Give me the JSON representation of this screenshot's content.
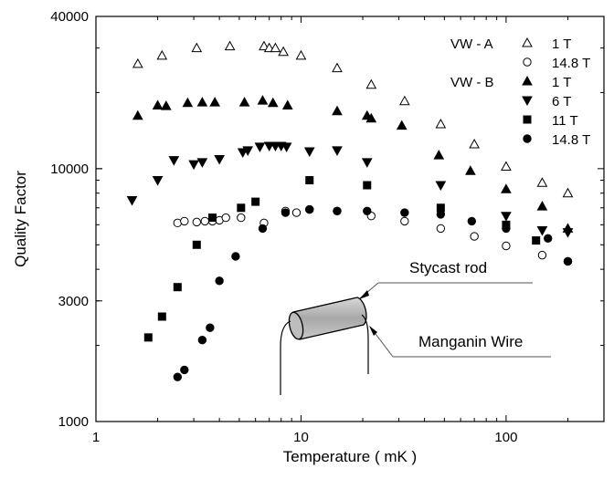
{
  "chart_data": {
    "type": "scatter",
    "xlabel": "Temperature ( mK )",
    "ylabel": "Quality Factor",
    "xscale": "log",
    "yscale": "log",
    "xlim": [
      1,
      300
    ],
    "ylim": [
      1000,
      40000
    ],
    "xtick_labels": [
      {
        "value": 1,
        "label": "1"
      },
      {
        "value": 10,
        "label": "10"
      },
      {
        "value": 100,
        "label": "100"
      }
    ],
    "ytick_labels": [
      {
        "value": 1000,
        "label": "1000"
      },
      {
        "value": 3000,
        "label": "3000"
      },
      {
        "value": 10000,
        "label": "10000"
      },
      {
        "value": 40000,
        "label": "40000"
      }
    ],
    "grid": false,
    "legend_position": "top-right",
    "legend_groups": [
      "VW - A",
      "VW - B"
    ],
    "series": [
      {
        "group": "VW - A",
        "name": "1 T",
        "marker": "triangle-up-open",
        "x": [
          1.6,
          2.1,
          3.1,
          4.5,
          6.6,
          7.0,
          7.5,
          8.2,
          10,
          15,
          22,
          32,
          48,
          70,
          100,
          150,
          200
        ],
        "y": [
          26000,
          28000,
          30000,
          30500,
          30500,
          30000,
          30000,
          29000,
          28000,
          25000,
          21500,
          18500,
          15000,
          12500,
          10200,
          8800,
          8000
        ]
      },
      {
        "group": "VW - A",
        "name": "14.8 T",
        "marker": "circle-open",
        "x": [
          2.5,
          2.7,
          3.1,
          3.4,
          3.7,
          4.0,
          4.3,
          5.1,
          6.6,
          8.4,
          9.5,
          11,
          15,
          22,
          32,
          48,
          70,
          100,
          150,
          200
        ],
        "y": [
          6100,
          6200,
          6150,
          6200,
          6200,
          6250,
          6400,
          6400,
          6100,
          6800,
          6700,
          6900,
          6800,
          6500,
          6200,
          5800,
          5400,
          4950,
          4550,
          4300
        ]
      },
      {
        "group": "VW - B",
        "name": "1 T",
        "marker": "triangle-up-filled",
        "x": [
          1.6,
          2.0,
          2.2,
          2.8,
          3.3,
          3.8,
          5.3,
          6.5,
          7.3,
          8.6,
          15,
          21,
          22,
          31,
          47,
          67,
          100,
          150,
          200
        ],
        "y": [
          16200,
          17800,
          17700,
          18200,
          18300,
          18300,
          18300,
          18600,
          18200,
          17800,
          16900,
          16200,
          15800,
          14800,
          11300,
          9800,
          8300,
          7100,
          5800
        ]
      },
      {
        "group": "VW - B",
        "name": "6 T",
        "marker": "triangle-down-filled",
        "x": [
          1.5,
          2.0,
          2.4,
          3.0,
          3.3,
          4.0,
          5.2,
          5.5,
          6.3,
          7.0,
          7.5,
          8.0,
          8.5,
          11,
          15,
          21,
          48,
          100,
          150,
          200
        ],
        "y": [
          7500,
          9000,
          10800,
          10400,
          10600,
          10900,
          11600,
          11800,
          12200,
          12300,
          12300,
          12300,
          12200,
          11700,
          11800,
          10600,
          8600,
          6500,
          5700,
          5600
        ]
      },
      {
        "group": "VW - B",
        "name": "11 T",
        "marker": "square-filled",
        "x": [
          1.8,
          2.1,
          2.5,
          3.1,
          3.7,
          5.1,
          6.0,
          11,
          21,
          48,
          100,
          140
        ],
        "y": [
          2150,
          2600,
          3400,
          5000,
          6400,
          7000,
          7400,
          9000,
          8600,
          7000,
          6000,
          5200
        ]
      },
      {
        "group": "VW - B",
        "name": "14.8 T",
        "marker": "circle-filled",
        "x": [
          2.5,
          2.7,
          3.3,
          3.6,
          4.0,
          4.8,
          6.5,
          8.4,
          11,
          15,
          21,
          32,
          48,
          68,
          100,
          160,
          200
        ],
        "y": [
          1500,
          1600,
          2100,
          2350,
          3600,
          4500,
          5800,
          6700,
          6900,
          6800,
          6800,
          6700,
          6600,
          6200,
          5800,
          5300,
          4300
        ]
      }
    ],
    "annotations": [
      {
        "label": "Stycast rod"
      },
      {
        "label": "Manganin Wire"
      }
    ]
  }
}
